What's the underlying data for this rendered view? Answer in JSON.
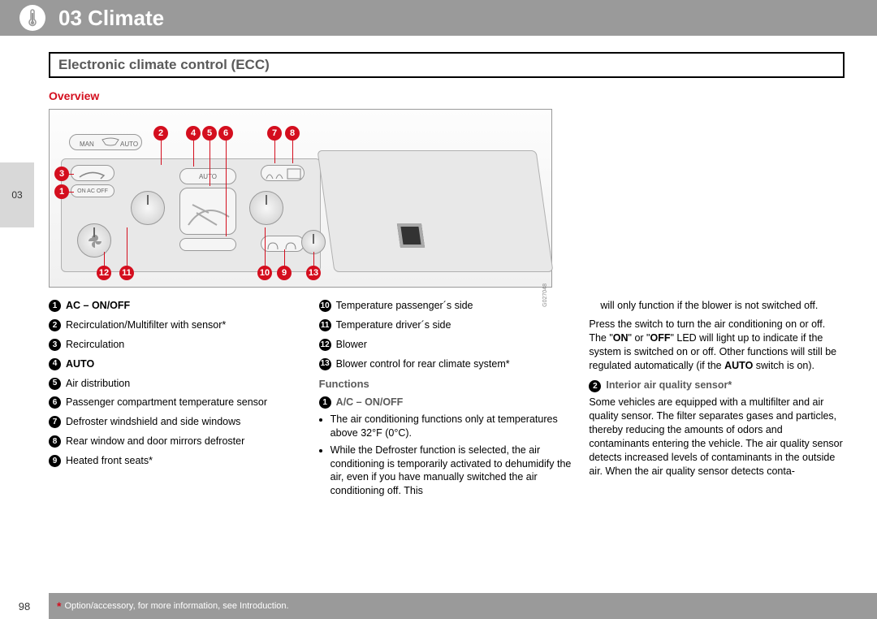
{
  "header": {
    "chapter": "03",
    "title": "Climate"
  },
  "sideTab": "03",
  "subheader": "Electronic climate control (ECC)",
  "overviewTitle": "Overview",
  "callouts": {
    "c1": "1",
    "c2": "2",
    "c3": "3",
    "c4": "4",
    "c5": "5",
    "c6": "6",
    "c7": "7",
    "c8": "8",
    "c9": "9",
    "c10": "10",
    "c11": "11",
    "c12": "12",
    "c13": "13"
  },
  "legend": {
    "i1": {
      "bold": "AC – ON/OFF",
      "text": ""
    },
    "i2": {
      "text": "Recirculation/Multifilter with sensor*"
    },
    "i3": {
      "text": "Recirculation"
    },
    "i4": {
      "bold": "AUTO",
      "text": ""
    },
    "i5": {
      "text": "Air distribution"
    },
    "i6": {
      "text": "Passenger compartment temperature sensor"
    },
    "i7": {
      "text": "Defroster windshield and side windows"
    },
    "i8": {
      "text": "Rear window and door mirrors defroster"
    },
    "i9": {
      "text": "Heated front seats*"
    },
    "i10": {
      "text": "Temperature passenger´s side"
    },
    "i11": {
      "text": "Temperature driver´s side"
    },
    "i12": {
      "text": "Blower"
    },
    "i13": {
      "text": "Blower control for rear climate system*"
    }
  },
  "functions": {
    "heading": "Functions",
    "f1": {
      "title": "A/C – ON/OFF",
      "bullets": [
        "The air conditioning functions only at temperatures above 32°F (0°C).",
        "While the Defroster function is selected, the air conditioning is temporarily activated to dehumidify the air, even if you have manually switched the air conditioning off. This"
      ]
    },
    "col3_top": "will only function if the blower is not switched off.",
    "col3_para": "Press the switch to turn the air conditioning on or off. The \"ON\" or \"OFF\" LED will light up to indicate if the system is switched on or off. Other functions will still be regulated automatically (if the AUTO switch is on).",
    "f2": {
      "title": "Interior air quality sensor*",
      "text": "Some vehicles are equipped with a multifilter and air quality sensor. The filter separates gases and particles, thereby reducing the amounts of odors and contaminants entering the vehicle. The air quality sensor detects increased levels of contaminants in the outside air. When the air quality sensor detects conta-"
    }
  },
  "footer": {
    "page": "98",
    "note": "Option/accessory, for more information, see Introduction."
  }
}
